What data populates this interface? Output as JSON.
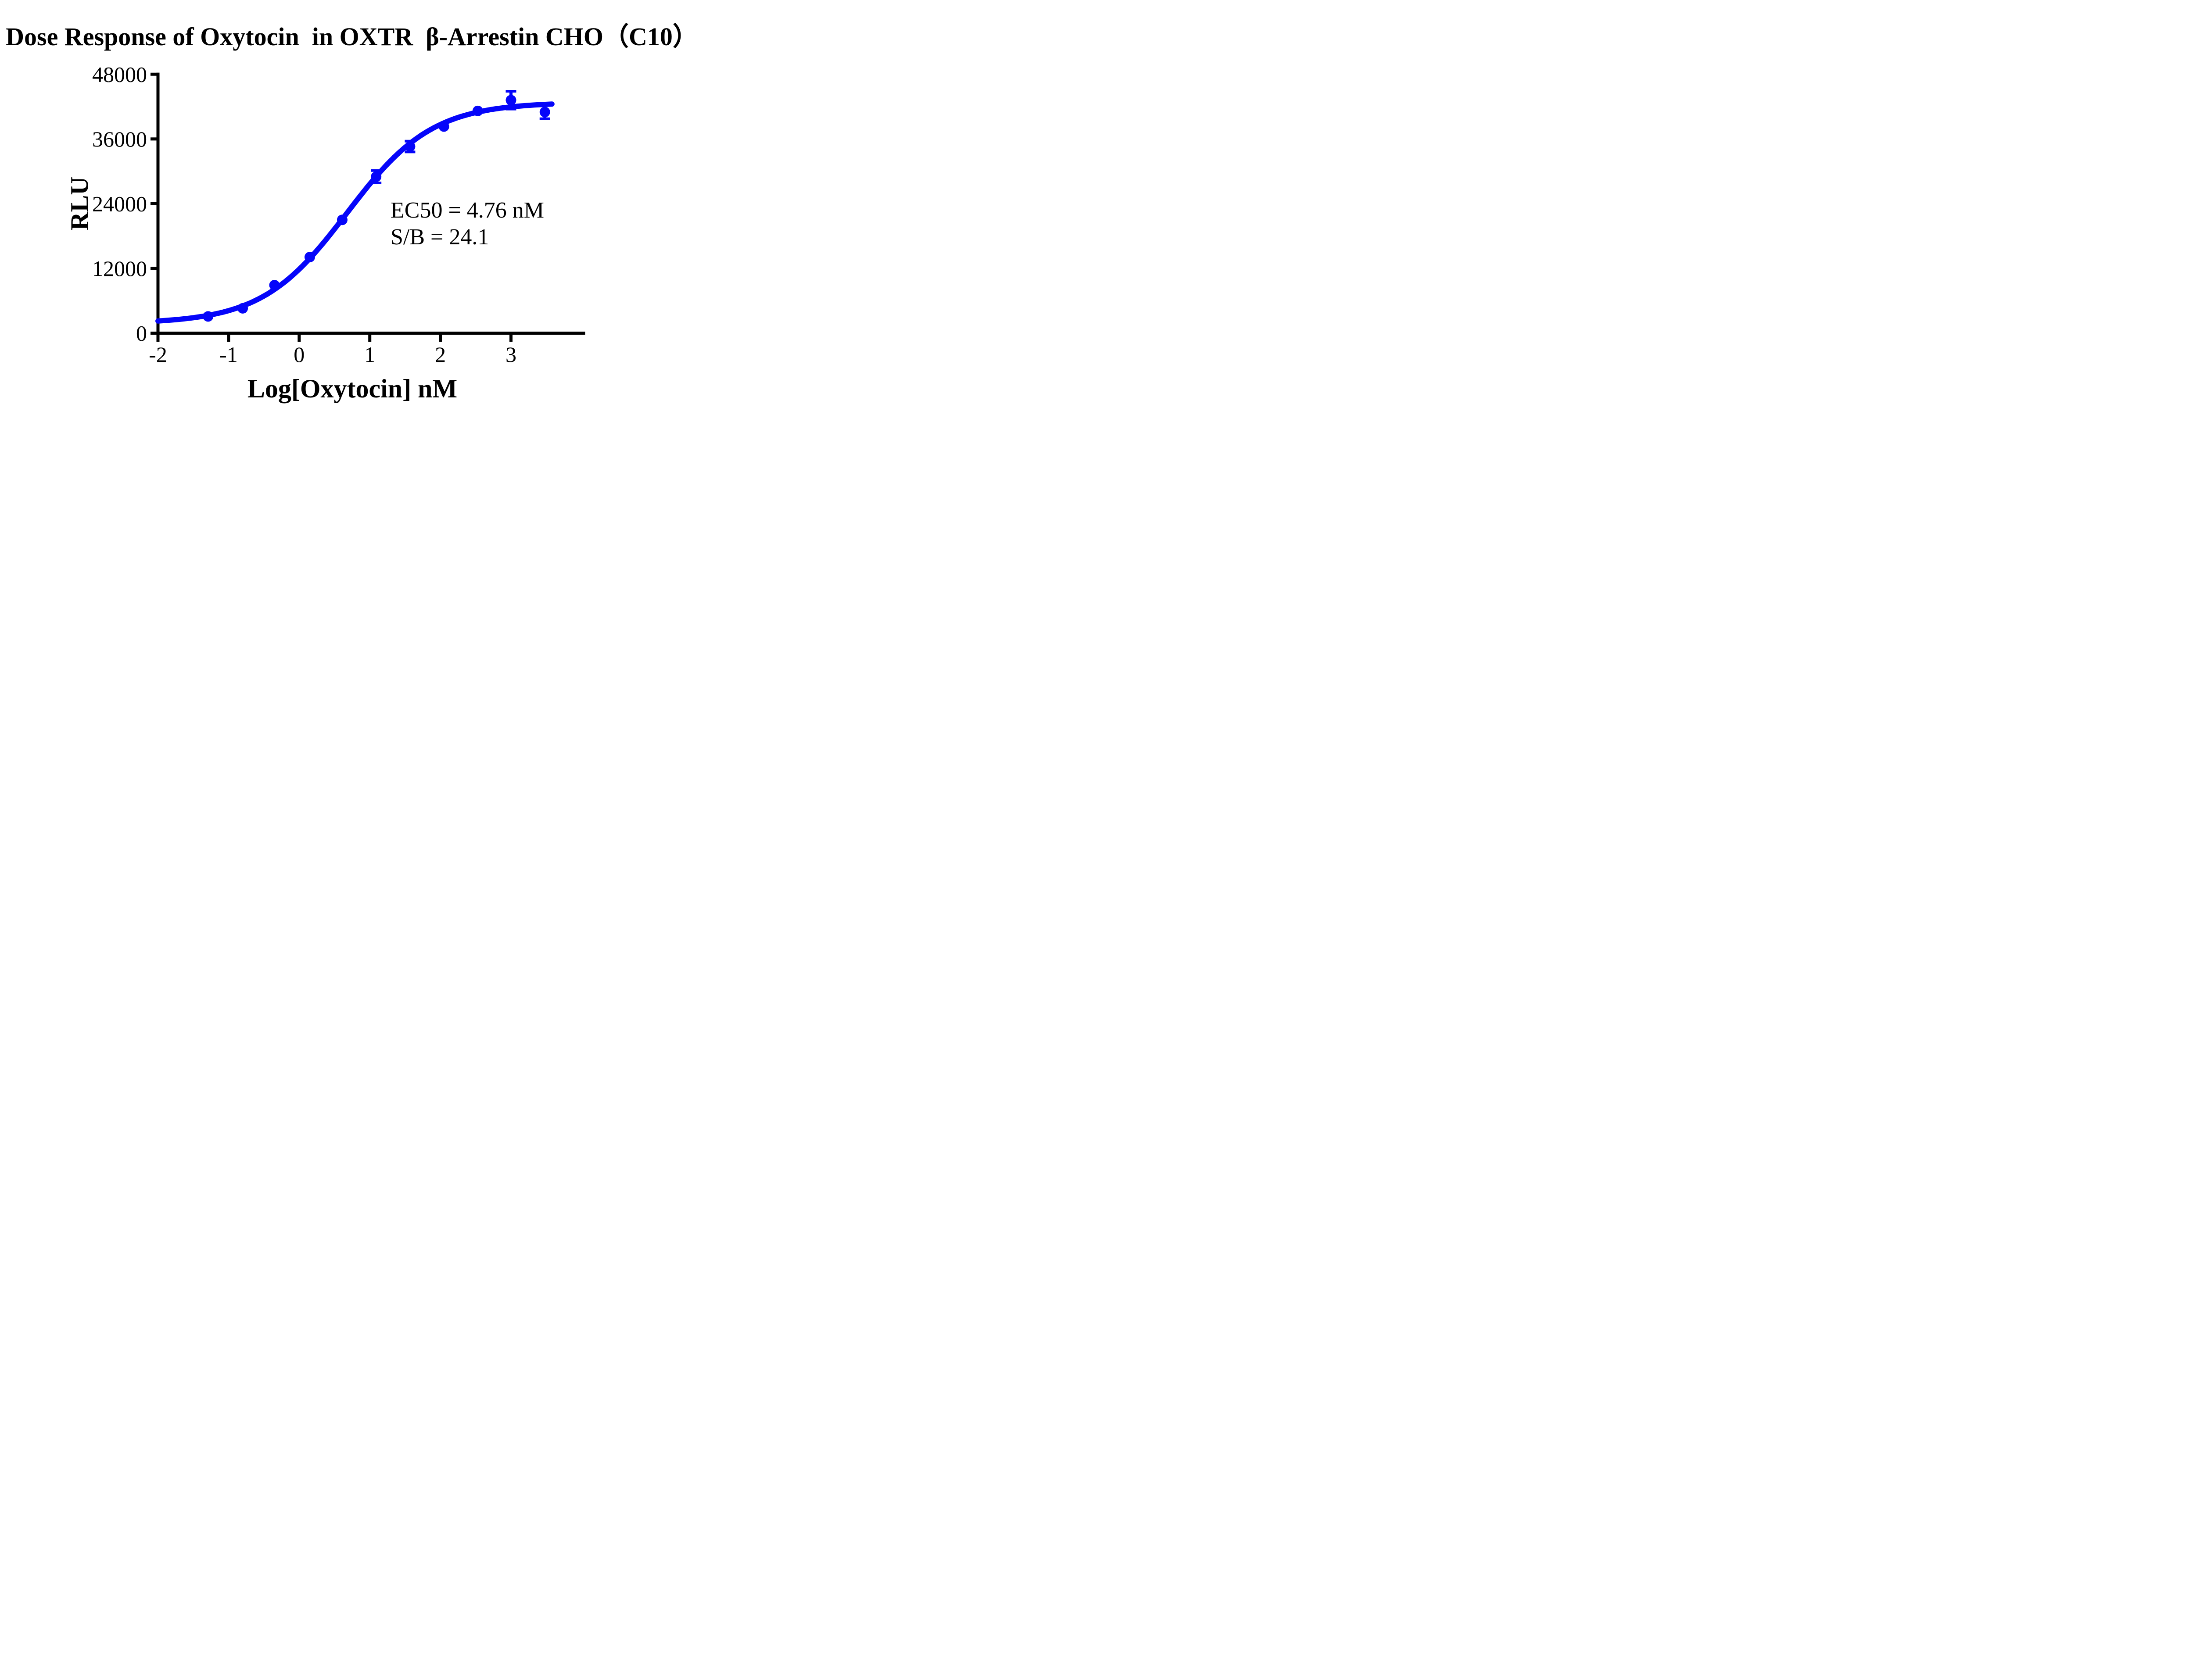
{
  "title": "Dose Response of Oxytocin  in OXTR  β-Arrestin CHO（C10）",
  "annotation": {
    "ec50_line": "EC50 = 4.76 nM",
    "sb_line": "S/B = 24.1"
  },
  "chart_data": {
    "type": "scatter",
    "subtype": "dose-response sigmoid fit with error bars",
    "title": "Dose Response of Oxytocin  in OXTR  β-Arrestin CHO（C10）",
    "xlabel": "Log[Oxytocin] nM",
    "ylabel": "RLU",
    "xlim": [
      -2,
      4.05
    ],
    "ylim": [
      0,
      48000
    ],
    "x_ticks": [
      -2,
      -1,
      0,
      1,
      2,
      3
    ],
    "y_ticks": [
      0,
      12000,
      24000,
      36000,
      48000
    ],
    "grid": false,
    "legend": null,
    "points": [
      {
        "x": -1.29,
        "y": 3100,
        "err": null
      },
      {
        "x": -0.8,
        "y": 4600,
        "err": null
      },
      {
        "x": -0.35,
        "y": 8900,
        "err": null
      },
      {
        "x": 0.15,
        "y": 14100,
        "err": null
      },
      {
        "x": 0.61,
        "y": 21000,
        "err": null
      },
      {
        "x": 1.09,
        "y": 29000,
        "err": 1150
      },
      {
        "x": 1.57,
        "y": 34600,
        "err": 1000
      },
      {
        "x": 2.05,
        "y": 38300,
        "err": null
      },
      {
        "x": 2.53,
        "y": 41200,
        "err": null
      },
      {
        "x": 3.0,
        "y": 43200,
        "err": 1650
      },
      {
        "x": 3.48,
        "y": 41000,
        "err": 1250
      }
    ],
    "fit": {
      "model": "4PL",
      "bottom": 1780,
      "top": 42800,
      "log_ec50": 0.678,
      "hill": 0.72,
      "ec50_nM": 4.76,
      "signal_to_background": 24.1,
      "curve_x_range": [
        -2,
        3.58
      ]
    },
    "colors": {
      "series": "#0505fa",
      "axis": "#000000",
      "background": "#ffffff"
    }
  }
}
